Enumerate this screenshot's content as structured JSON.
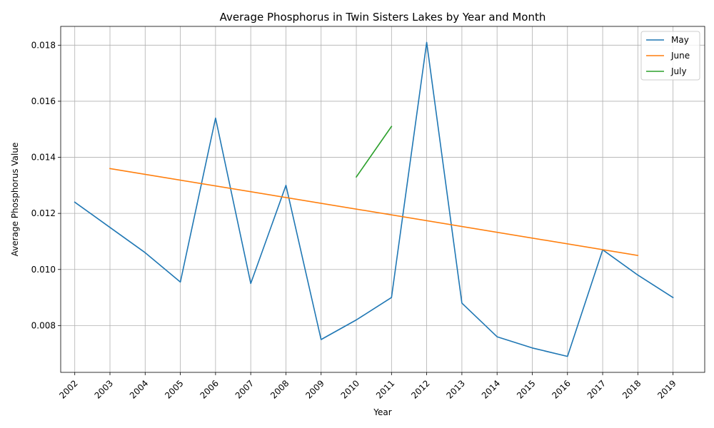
{
  "chart_data": {
    "type": "line",
    "title": "Average Phosphorus in Twin Sisters Lakes by Year and Month",
    "xlabel": "Year",
    "ylabel": "Average Phosphorus Value",
    "x_tick_labels": [
      "2002",
      "2003",
      "2004",
      "2005",
      "2006",
      "2007",
      "2008",
      "2009",
      "2010",
      "2011",
      "2012",
      "2013",
      "2014",
      "2015",
      "2016",
      "2017",
      "2018",
      "2019"
    ],
    "y_tick_labels": [
      "0.008",
      "0.010",
      "0.012",
      "0.014",
      "0.016",
      "0.018"
    ],
    "xlim": [
      2001.6,
      2019.9
    ],
    "ylim": [
      0.00633,
      0.01867
    ],
    "grid": true,
    "legend_position": "top-right",
    "series": [
      {
        "name": "May",
        "color": "#1f77b4",
        "x": [
          2002,
          2003,
          2004,
          2005,
          2006,
          2007,
          2008,
          2009,
          2010,
          2011,
          2012,
          2013,
          2014,
          2015,
          2016,
          2017,
          2018,
          2019
        ],
        "y": [
          0.0124,
          0.0115,
          0.0106,
          0.00955,
          0.0154,
          0.0095,
          0.013,
          0.0075,
          0.0082,
          0.009,
          0.0181,
          0.0088,
          0.0076,
          0.0072,
          0.0069,
          0.0107,
          0.0098,
          0.009
        ]
      },
      {
        "name": "June",
        "color": "#ff7f0e",
        "x": [
          2003,
          2018
        ],
        "y": [
          0.0136,
          0.0105
        ]
      },
      {
        "name": "July",
        "color": "#2ca02c",
        "x": [
          2010,
          2011
        ],
        "y": [
          0.0133,
          0.0151
        ]
      }
    ]
  }
}
